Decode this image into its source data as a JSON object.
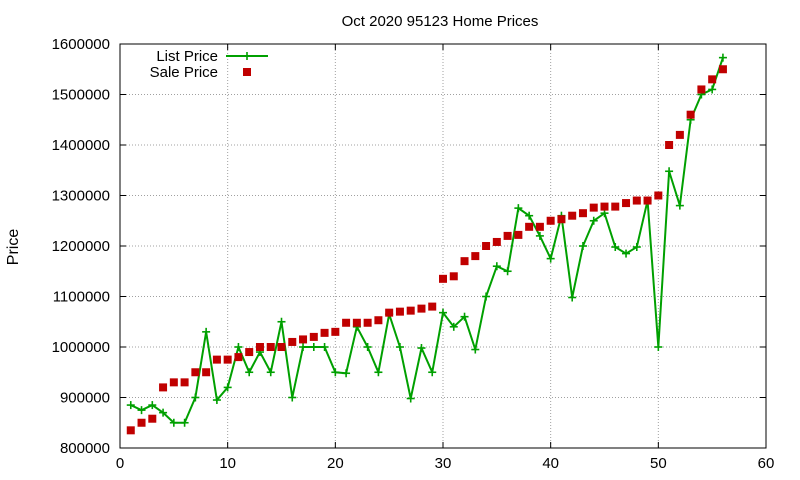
{
  "chart_data": {
    "type": "scatter",
    "title": "Oct 2020 95123 Home Prices",
    "xlabel": "",
    "ylabel": "Price",
    "xlim": [
      0,
      60
    ],
    "ylim": [
      800000,
      1600000
    ],
    "x_ticks": [
      0,
      10,
      20,
      30,
      40,
      50,
      60
    ],
    "y_ticks": [
      800000,
      900000,
      1000000,
      1100000,
      1200000,
      1300000,
      1400000,
      1500000,
      1600000
    ],
    "grid": true,
    "legend_position": "top-left",
    "series": [
      {
        "name": "List Price",
        "style": "linespoints",
        "marker": "plus",
        "color": "#00a000",
        "x": [
          1,
          2,
          3,
          4,
          5,
          6,
          7,
          8,
          9,
          10,
          11,
          12,
          13,
          14,
          15,
          16,
          17,
          18,
          19,
          20,
          21,
          22,
          23,
          24,
          25,
          26,
          27,
          28,
          29,
          30,
          31,
          32,
          33,
          34,
          35,
          36,
          37,
          38,
          39,
          40,
          41,
          42,
          43,
          44,
          45,
          46,
          47,
          48,
          49,
          50,
          51,
          52,
          53,
          54,
          55,
          56
        ],
        "y": [
          885000,
          875000,
          885000,
          870000,
          850000,
          850000,
          900000,
          1030000,
          895000,
          920000,
          1000000,
          950000,
          990000,
          950000,
          1050000,
          900000,
          1000000,
          1000000,
          1000000,
          950000,
          948000,
          1040000,
          1000000,
          950000,
          1065000,
          1000000,
          898000,
          998000,
          950000,
          1068000,
          1040000,
          1060000,
          995000,
          1100000,
          1160000,
          1150000,
          1275000,
          1260000,
          1220000,
          1175000,
          1260000,
          1098000,
          1200000,
          1250000,
          1265000,
          1198000,
          1185000,
          1198000,
          1290000,
          1000000,
          1348000,
          1280000,
          1450000,
          1500000,
          1510000,
          1573000
        ]
      },
      {
        "name": "Sale Price",
        "style": "points",
        "marker": "square",
        "color": "#c00000",
        "x": [
          1,
          2,
          3,
          4,
          5,
          6,
          7,
          8,
          9,
          10,
          11,
          12,
          13,
          14,
          15,
          16,
          17,
          18,
          19,
          20,
          21,
          22,
          23,
          24,
          25,
          26,
          27,
          28,
          29,
          30,
          31,
          32,
          33,
          34,
          35,
          36,
          37,
          38,
          39,
          40,
          41,
          42,
          43,
          44,
          45,
          46,
          47,
          48,
          49,
          50,
          51,
          52,
          53,
          54,
          55,
          56
        ],
        "y": [
          835000,
          850000,
          858000,
          920000,
          930000,
          930000,
          950000,
          950000,
          975000,
          975000,
          980000,
          990000,
          1000000,
          1000000,
          1000000,
          1010000,
          1015000,
          1020000,
          1028000,
          1030000,
          1048000,
          1048000,
          1048000,
          1053000,
          1068000,
          1070000,
          1072000,
          1076000,
          1080000,
          1135000,
          1140000,
          1170000,
          1180000,
          1200000,
          1208000,
          1220000,
          1222000,
          1238000,
          1238000,
          1250000,
          1253000,
          1260000,
          1265000,
          1276000,
          1278000,
          1278000,
          1285000,
          1290000,
          1290000,
          1300000,
          1400000,
          1420000,
          1460000,
          1510000,
          1530000,
          1550000
        ]
      }
    ]
  }
}
